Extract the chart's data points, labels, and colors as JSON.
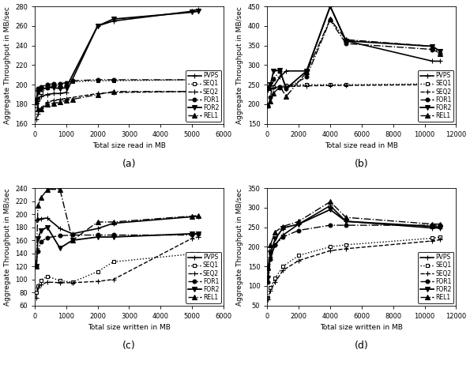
{
  "a": {
    "xlabel": "Total size read in MB",
    "ylabel": "Aggregate Throughput in MB/sec",
    "xlim": [
      0,
      6000
    ],
    "ylim": [
      160,
      280
    ],
    "yticks": [
      160,
      180,
      200,
      220,
      240,
      260,
      280
    ],
    "xticks": [
      0,
      1000,
      2000,
      3000,
      4000,
      5000,
      6000
    ],
    "label": "(a)",
    "legend_loc": "lower right",
    "series": {
      "PVPS": {
        "x": [
          50,
          100,
          200,
          400,
          600,
          800,
          1000,
          2000,
          2500,
          5000,
          5200
        ],
        "y": [
          184,
          186,
          188,
          190,
          191,
          191,
          192,
          260,
          265,
          275,
          277
        ]
      },
      "SEQ1": {
        "x": [
          50,
          100,
          200,
          400,
          600,
          800,
          1000,
          1200,
          2000,
          2500,
          5000,
          5200
        ],
        "y": [
          178,
          185,
          192,
          197,
          199,
          200,
          202,
          203,
          204,
          204,
          205,
          205
        ]
      },
      "SEQ2": {
        "x": [
          50,
          100,
          200,
          400,
          600,
          800,
          1000,
          2000,
          2500,
          5000,
          5200
        ],
        "y": [
          165,
          170,
          176,
          182,
          184,
          185,
          186,
          191,
          192,
          193,
          193
        ]
      },
      "FOR1": {
        "x": [
          50,
          100,
          200,
          400,
          600,
          800,
          1000,
          1200,
          2000,
          2500,
          5000,
          5200
        ],
        "y": [
          185,
          196,
          198,
          200,
          201,
          201,
          202,
          204,
          205,
          205,
          205,
          205
        ]
      },
      "FOR2": {
        "x": [
          50,
          100,
          200,
          400,
          600,
          800,
          1000,
          2000,
          2500,
          5000,
          5200
        ],
        "y": [
          184,
          192,
          195,
          197,
          197,
          196,
          197,
          260,
          267,
          274,
          275
        ]
      },
      "REL1": {
        "x": [
          50,
          100,
          200,
          400,
          600,
          800,
          1000,
          1200,
          2000,
          2500,
          5000,
          5200
        ],
        "y": [
          183,
          175,
          175,
          180,
          181,
          182,
          184,
          185,
          190,
          193,
          193,
          193
        ]
      }
    }
  },
  "b": {
    "xlabel": "Total size read in MB",
    "ylabel": "Aggregate Throughput in MB/sec",
    "xlim": [
      0,
      12000
    ],
    "ylim": [
      150,
      450
    ],
    "yticks": [
      150,
      200,
      250,
      300,
      350,
      400,
      450
    ],
    "xticks": [
      0,
      2000,
      4000,
      6000,
      8000,
      10000,
      12000
    ],
    "label": "(b)",
    "legend_loc": "lower right",
    "series": {
      "PVPS": {
        "x": [
          50,
          200,
          400,
          800,
          1200,
          2500,
          4000,
          5000,
          10500,
          11000
        ],
        "y": [
          245,
          243,
          245,
          270,
          285,
          285,
          450,
          362,
          310,
          310
        ]
      },
      "SEQ1": {
        "x": [
          50,
          200,
          400,
          800,
          1200,
          2500,
          4000,
          5000,
          10500,
          11000
        ],
        "y": [
          242,
          244,
          244,
          245,
          248,
          250,
          250,
          250,
          252,
          256
        ]
      },
      "SEQ2": {
        "x": [
          50,
          200,
          400,
          800,
          1200,
          2500,
          4000,
          5000,
          10500,
          11000
        ],
        "y": [
          237,
          240,
          242,
          243,
          245,
          247,
          248,
          248,
          250,
          255
        ]
      },
      "FOR1": {
        "x": [
          50,
          200,
          400,
          800,
          1200,
          2500,
          4000,
          5000,
          10500,
          11000
        ],
        "y": [
          195,
          218,
          265,
          285,
          240,
          270,
          415,
          355,
          340,
          330
        ]
      },
      "FOR2": {
        "x": [
          50,
          200,
          400,
          800,
          1200,
          2500,
          4000,
          5000,
          10500,
          11000
        ],
        "y": [
          240,
          250,
          285,
          287,
          240,
          285,
          450,
          362,
          348,
          335
        ]
      },
      "REL1": {
        "x": [
          50,
          200,
          400,
          800,
          1200,
          2500,
          4000,
          5000,
          10500,
          11000
        ],
        "y": [
          198,
          207,
          228,
          245,
          220,
          282,
          417,
          365,
          348,
          328
        ]
      }
    }
  },
  "c": {
    "xlabel": "Total size written in MB",
    "ylabel": "Aggregate Throughput in MB/sec",
    "xlim": [
      0,
      6000
    ],
    "ylim": [
      60,
      240
    ],
    "yticks": [
      60,
      80,
      100,
      120,
      140,
      160,
      180,
      200,
      220,
      240
    ],
    "xticks": [
      0,
      1000,
      2000,
      3000,
      4000,
      5000,
      6000
    ],
    "label": "(c)",
    "legend_loc": "lower right",
    "series": {
      "PVPS": {
        "x": [
          50,
          100,
          200,
          400,
          800,
          1200,
          2000,
          2500,
          5000,
          5200
        ],
        "y": [
          190,
          192,
          193,
          194,
          178,
          170,
          178,
          186,
          196,
          197
        ]
      },
      "SEQ1": {
        "x": [
          50,
          100,
          200,
          400,
          800,
          1200,
          2000,
          2500,
          5000,
          5200
        ],
        "y": [
          80,
          90,
          99,
          105,
          98,
          96,
          112,
          127,
          139,
          140
        ]
      },
      "SEQ2": {
        "x": [
          50,
          100,
          200,
          400,
          800,
          1200,
          2000,
          2500,
          5000,
          5200
        ],
        "y": [
          72,
          88,
          92,
          96,
          95,
          95,
          97,
          100,
          163,
          165
        ]
      },
      "FOR1": {
        "x": [
          50,
          100,
          200,
          400,
          800,
          1200,
          2000,
          2500,
          5000,
          5200
        ],
        "y": [
          120,
          143,
          158,
          164,
          167,
          168,
          168,
          168,
          168,
          170
        ]
      },
      "FOR2": {
        "x": [
          50,
          100,
          200,
          400,
          800,
          1200,
          2000,
          2500,
          5000,
          5200
        ],
        "y": [
          120,
          162,
          175,
          180,
          148,
          160,
          165,
          165,
          170,
          170
        ]
      },
      "REL1": {
        "x": [
          50,
          100,
          200,
          400,
          800,
          1200,
          2000,
          2500,
          5000,
          5200
        ],
        "y": [
          120,
          213,
          225,
          238,
          238,
          160,
          188,
          188,
          197,
          198
        ]
      }
    }
  },
  "d": {
    "xlabel": "Total size written in MB",
    "ylabel": "Aggregate Throughput in MB/sec",
    "xlim": [
      0,
      12000
    ],
    "ylim": [
      50,
      350
    ],
    "yticks": [
      50,
      100,
      150,
      200,
      250,
      300,
      350
    ],
    "xticks": [
      0,
      2000,
      4000,
      6000,
      8000,
      10000,
      12000
    ],
    "label": "(d)",
    "legend_loc": "lower right",
    "series": {
      "PVPS": {
        "x": [
          50,
          200,
          500,
          1000,
          2000,
          4000,
          5000,
          10500,
          11000
        ],
        "y": [
          140,
          175,
          205,
          230,
          258,
          305,
          265,
          248,
          248
        ]
      },
      "SEQ1": {
        "x": [
          50,
          200,
          500,
          1000,
          2000,
          4000,
          5000,
          10500,
          11000
        ],
        "y": [
          70,
          95,
          120,
          150,
          178,
          200,
          205,
          222,
          225
        ]
      },
      "SEQ2": {
        "x": [
          50,
          200,
          500,
          1000,
          2000,
          4000,
          5000,
          10500,
          11000
        ],
        "y": [
          65,
          88,
          110,
          140,
          165,
          190,
          195,
          215,
          218
        ]
      },
      "FOR1": {
        "x": [
          50,
          200,
          500,
          1000,
          2000,
          4000,
          5000,
          10500,
          11000
        ],
        "y": [
          110,
          168,
          205,
          225,
          242,
          255,
          255,
          255,
          255
        ]
      },
      "FOR2": {
        "x": [
          50,
          200,
          500,
          1000,
          2000,
          4000,
          5000,
          10500,
          11000
        ],
        "y": [
          120,
          185,
          220,
          248,
          258,
          295,
          265,
          252,
          250
        ]
      },
      "REL1": {
        "x": [
          50,
          200,
          500,
          1000,
          2000,
          4000,
          5000,
          10500,
          11000
        ],
        "y": [
          148,
          205,
          238,
          252,
          265,
          315,
          275,
          258,
          258
        ]
      }
    }
  },
  "legend_labels": [
    "PVPS",
    "SEQ1",
    "SEQ2",
    "FOR1",
    "FOR2",
    "REL1"
  ],
  "font_size": 6.5,
  "label_font_size": 9,
  "tick_font_size": 6
}
